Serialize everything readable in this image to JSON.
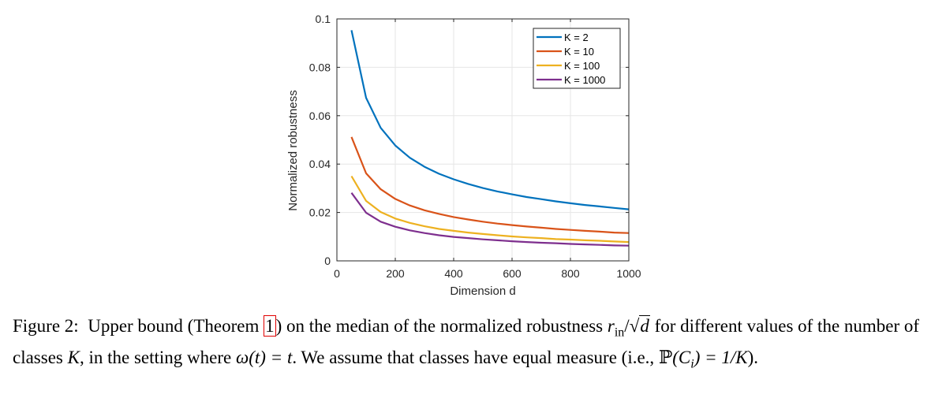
{
  "chart_data": {
    "type": "line",
    "xlabel": "Dimension d",
    "ylabel": "Normalized robustness",
    "xlim": [
      0,
      1000
    ],
    "ylim": [
      0,
      0.1
    ],
    "xticks": [
      "0",
      "200",
      "400",
      "600",
      "800",
      "1000"
    ],
    "yticks": [
      "0",
      "0.02",
      "0.04",
      "0.06",
      "0.08",
      "0.1"
    ],
    "grid": true,
    "legend_position": "top-right",
    "x": [
      50,
      100,
      150,
      200,
      250,
      300,
      350,
      400,
      450,
      500,
      550,
      600,
      650,
      700,
      750,
      800,
      850,
      900,
      950,
      1000
    ],
    "series": [
      {
        "name": "K = 2",
        "color": "#0072BD",
        "values": [
          0.0953,
          0.0674,
          0.055,
          0.0477,
          0.0426,
          0.0389,
          0.036,
          0.0337,
          0.0318,
          0.0301,
          0.0287,
          0.0275,
          0.0264,
          0.0255,
          0.0246,
          0.0238,
          0.0231,
          0.0225,
          0.0219,
          0.0213
        ]
      },
      {
        "name": "K = 10",
        "color": "#D95319",
        "values": [
          0.0512,
          0.0362,
          0.0296,
          0.0256,
          0.0229,
          0.0209,
          0.0194,
          0.0181,
          0.0171,
          0.0162,
          0.0154,
          0.0148,
          0.0142,
          0.0137,
          0.0132,
          0.0128,
          0.0124,
          0.0121,
          0.0117,
          0.0115
        ]
      },
      {
        "name": "K = 100",
        "color": "#EDB120",
        "values": [
          0.035,
          0.0248,
          0.0202,
          0.0175,
          0.0157,
          0.0143,
          0.0132,
          0.0124,
          0.0117,
          0.0111,
          0.0106,
          0.0101,
          0.0097,
          0.0094,
          0.009,
          0.0088,
          0.0085,
          0.0083,
          0.008,
          0.0078
        ]
      },
      {
        "name": "K = 1000",
        "color": "#7E2F8E",
        "values": [
          0.0281,
          0.0199,
          0.0162,
          0.0141,
          0.0126,
          0.0115,
          0.0106,
          0.0099,
          0.0094,
          0.0089,
          0.0085,
          0.0081,
          0.0078,
          0.0075,
          0.0073,
          0.007,
          0.0068,
          0.0066,
          0.0064,
          0.0063
        ]
      }
    ]
  },
  "caption": {
    "label": "Figure 2:",
    "p1": "Upper bound (Theorem ",
    "ref": "1",
    "p2": ") on the median of the normalized robustness ",
    "r_sym": "r",
    "r_sub": "in",
    "slash": "/",
    "sqrt_sym": "√",
    "d_sym": "d",
    "p3": " for different values of the number of classes ",
    "K_sym": "K",
    "p4": ", in the setting where ",
    "omega_eq": "ω(t) = t",
    "p5": ". We assume that classes have equal measure (i.e., ",
    "prob_sym": "ℙ",
    "prob_eq": "(C",
    "prob_sub": "i",
    "prob_rest": ") = 1/K",
    "p6": ")."
  }
}
